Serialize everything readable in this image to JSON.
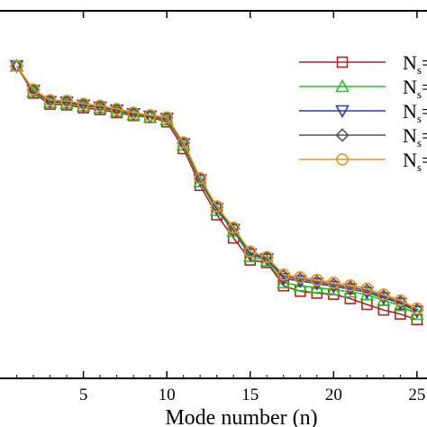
{
  "chart_data": {
    "type": "line",
    "title": "",
    "xlabel": "Mode number (n)",
    "ylabel": "",
    "xlim": [
      0,
      25.6
    ],
    "ylim": [
      0,
      1
    ],
    "x_ticks": [
      "5",
      "10",
      "15",
      "20",
      "25"
    ],
    "x_tick_values": [
      5,
      10,
      15,
      20,
      25
    ],
    "grid": false,
    "legend_position": "top-right",
    "x": [
      1,
      2,
      3,
      4,
      5,
      6,
      7,
      8,
      9,
      10,
      11,
      12,
      13,
      14,
      15,
      16,
      17,
      18,
      19,
      20,
      21,
      22,
      23,
      24,
      25
    ],
    "series": [
      {
        "name": "N_s =",
        "label_main": "N",
        "label_sub": "s",
        "label_rest": "=",
        "color": "#b22222",
        "marker": "square",
        "values": [
          0.85,
          0.776,
          0.746,
          0.744,
          0.736,
          0.731,
          0.723,
          0.715,
          0.71,
          0.698,
          0.625,
          0.525,
          0.445,
          0.382,
          0.322,
          0.315,
          0.252,
          0.237,
          0.232,
          0.229,
          0.217,
          0.201,
          0.186,
          0.175,
          0.16
        ]
      },
      {
        "name": "N_s =",
        "label_main": "N",
        "label_sub": "s",
        "label_rest": "=",
        "color": "#22c422",
        "marker": "triangle-up",
        "values": [
          0.85,
          0.781,
          0.751,
          0.749,
          0.741,
          0.736,
          0.727,
          0.717,
          0.711,
          0.704,
          0.635,
          0.535,
          0.457,
          0.401,
          0.332,
          0.32,
          0.26,
          0.252,
          0.247,
          0.241,
          0.235,
          0.228,
          0.212,
          0.198,
          0.174
        ]
      },
      {
        "name": "N_s =",
        "label_main": "N",
        "label_sub": "s",
        "label_rest": "=",
        "color": "#2a36c8",
        "marker": "triangle-down",
        "values": [
          0.85,
          0.783,
          0.753,
          0.751,
          0.743,
          0.738,
          0.73,
          0.72,
          0.713,
          0.707,
          0.638,
          0.54,
          0.462,
          0.405,
          0.338,
          0.325,
          0.272,
          0.265,
          0.258,
          0.25,
          0.243,
          0.234,
          0.219,
          0.204,
          0.182
        ]
      },
      {
        "name": "N_s =",
        "label_main": "N",
        "label_sub": "s",
        "label_rest": "=",
        "color": "#555555",
        "marker": "diamond",
        "values": [
          0.85,
          0.784,
          0.755,
          0.753,
          0.745,
          0.74,
          0.731,
          0.721,
          0.714,
          0.708,
          0.64,
          0.543,
          0.465,
          0.408,
          0.342,
          0.328,
          0.278,
          0.27,
          0.263,
          0.255,
          0.248,
          0.239,
          0.223,
          0.208,
          0.186
        ]
      },
      {
        "name": "N_s =",
        "label_main": "N",
        "label_sub": "s",
        "label_rest": "=",
        "color": "#f0901a",
        "marker": "circle",
        "values": [
          0.85,
          0.786,
          0.757,
          0.755,
          0.747,
          0.742,
          0.733,
          0.723,
          0.716,
          0.71,
          0.642,
          0.545,
          0.468,
          0.41,
          0.345,
          0.33,
          0.282,
          0.275,
          0.268,
          0.26,
          0.253,
          0.244,
          0.228,
          0.212,
          0.19
        ]
      }
    ]
  }
}
